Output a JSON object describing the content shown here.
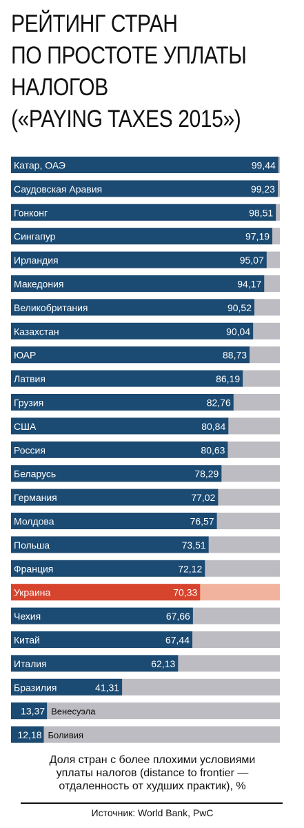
{
  "title": {
    "lines": [
      "РЕЙТИНГ СТРАН",
      "ПО ПРОСТОТЕ УПЛАТЫ",
      "НАЛОГОВ",
      "(«PAYING TAXES 2015»)"
    ]
  },
  "colors": {
    "bar": "#1b4a72",
    "track": "#bcbcc2",
    "highlight_bar": "#d7442d",
    "highlight_track": "#f1b39d"
  },
  "chart_data": {
    "type": "bar",
    "orientation": "horizontal",
    "xlim": [
      0,
      100
    ],
    "highlight": "Украина",
    "categories": [
      "Катар, ОАЭ",
      "Саудовская Аравия",
      "Гонконг",
      "Сингапур",
      "Ирландия",
      "Македония",
      "Великобритания",
      "Казахстан",
      "ЮАР",
      "Латвия",
      "Грузия",
      "США",
      "Россия",
      "Беларусь",
      "Германия",
      "Молдова",
      "Польша",
      "Франция",
      "Украина",
      "Чехия",
      "Китай",
      "Италия",
      "Бразилия",
      "Венесуэла",
      "Боливия"
    ],
    "values": [
      99.44,
      99.23,
      98.51,
      97.19,
      95.07,
      94.17,
      90.52,
      90.04,
      88.73,
      86.19,
      82.76,
      80.84,
      80.63,
      78.29,
      77.02,
      76.57,
      73.51,
      72.12,
      70.33,
      67.66,
      67.44,
      62.13,
      41.31,
      13.37,
      12.18
    ],
    "value_labels": [
      "99,44",
      "99,23",
      "98,51",
      "97,19",
      "95,07",
      "94,17",
      "90,52",
      "90,04",
      "88,73",
      "86,19",
      "82,76",
      "80,84",
      "80,63",
      "78,29",
      "77,02",
      "76,57",
      "73,51",
      "72,12",
      "70,33",
      "67,66",
      "67,44",
      "62,13",
      "41,31",
      "13,37",
      "12,18"
    ]
  },
  "footnote": {
    "lines": [
      "Доля стран с более плохими условиями",
      "уплаты налогов (distance to frontier —",
      "отдаленность от худших практик), %"
    ]
  },
  "source": "Источник: World Bank, PwC"
}
